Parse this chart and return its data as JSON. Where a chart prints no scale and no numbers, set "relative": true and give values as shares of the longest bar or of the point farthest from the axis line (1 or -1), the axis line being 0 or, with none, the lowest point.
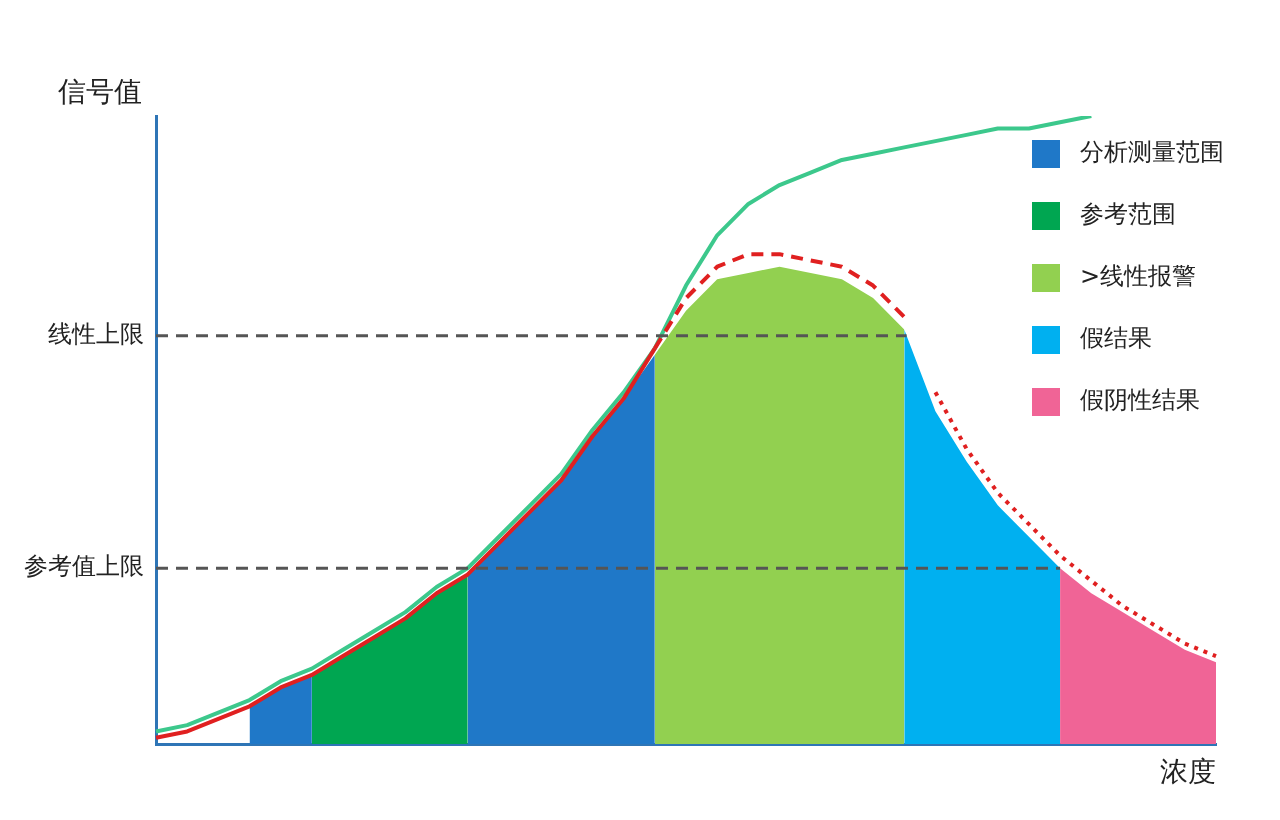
{
  "chart_data": {
    "type": "area",
    "relative": true,
    "xlabel": "浓度",
    "ylabel": "信号值",
    "legend": "right",
    "marker": "none",
    "grid": false,
    "categories": [
      null,
      null,
      null,
      null,
      null,
      null,
      null,
      null,
      null,
      null,
      null,
      null,
      null,
      null,
      null,
      null,
      null,
      null,
      null,
      null,
      null,
      null,
      null,
      null,
      null,
      null,
      null,
      null,
      null,
      null,
      null,
      null,
      null,
      null,
      null
    ],
    "series": [
      {
        "color": "#1f78c8",
        "values": [
          null,
          null,
          null,
          0.06,
          0.09,
          0.11,
          null,
          null,
          null,
          null,
          null,
          null,
          null,
          null,
          null,
          null,
          null,
          null,
          null,
          null,
          null,
          null,
          null,
          null,
          null,
          null,
          null,
          null,
          null,
          null,
          null,
          null,
          null,
          null,
          null
        ]
      },
      {
        "name": "分析测量范围",
        "color": "#1f78c8",
        "values": [
          null,
          null,
          null,
          null,
          null,
          null,
          null,
          null,
          null,
          null,
          0.27,
          0.32,
          0.37,
          0.42,
          0.49,
          0.55,
          0.62,
          null,
          null,
          null,
          null,
          null,
          null,
          null,
          null,
          null,
          null,
          null,
          null,
          null,
          null,
          null,
          null,
          null,
          null
        ]
      },
      {
        "name": "参考范围",
        "color": "#00a651",
        "values": [
          null,
          null,
          null,
          null,
          null,
          0.11,
          0.14,
          0.17,
          0.2,
          0.24,
          0.27,
          null,
          null,
          null,
          null,
          null,
          null,
          null,
          null,
          null,
          null,
          null,
          null,
          null,
          null,
          null,
          null,
          null,
          null,
          null,
          null,
          null,
          null,
          null,
          null
        ]
      },
      {
        "name": ">线性报警",
        "color": "#92d050",
        "values": [
          null,
          null,
          null,
          null,
          null,
          null,
          null,
          null,
          null,
          null,
          null,
          null,
          null,
          null,
          null,
          null,
          0.62,
          0.69,
          0.74,
          0.75,
          0.76,
          0.75,
          0.74,
          0.71,
          0.66,
          null,
          null,
          null,
          null,
          null,
          null,
          null,
          null,
          null,
          null
        ]
      },
      {
        "name": "假结果",
        "color": "#00b0f0",
        "values": [
          null,
          null,
          null,
          null,
          null,
          null,
          null,
          null,
          null,
          null,
          null,
          null,
          null,
          null,
          null,
          null,
          null,
          null,
          null,
          null,
          null,
          null,
          null,
          null,
          0.66,
          0.53,
          0.45,
          0.38,
          0.33,
          0.28,
          null,
          null,
          null,
          null,
          null
        ]
      },
      {
        "name": "假阴性结果",
        "color": "#f06496",
        "values": [
          null,
          null,
          null,
          null,
          null,
          null,
          null,
          null,
          null,
          null,
          null,
          null,
          null,
          null,
          null,
          null,
          null,
          null,
          null,
          null,
          null,
          null,
          null,
          null,
          null,
          null,
          null,
          null,
          null,
          0.28,
          0.24,
          0.21,
          0.18,
          0.15,
          0.13
        ]
      },
      {
        "type": "line",
        "color": "#3cc88c",
        "line_style": "solid",
        "values": [
          0.02,
          0.03,
          0.05,
          0.07,
          0.1,
          0.12,
          0.15,
          0.18,
          0.21,
          0.25,
          0.28,
          0.33,
          0.38,
          0.43,
          0.5,
          0.56,
          0.63,
          0.73,
          0.81,
          0.86,
          0.89,
          0.91,
          0.93,
          0.94,
          0.95,
          0.96,
          0.97,
          0.98,
          0.98,
          0.99,
          1,
          null,
          null,
          null,
          null
        ]
      },
      {
        "type": "line",
        "color": "#e02020",
        "line_style": "solid",
        "values": [
          0.01,
          0.02,
          0.04,
          0.06,
          0.09,
          0.11,
          0.14,
          0.17,
          0.2,
          0.24,
          0.27,
          0.32,
          0.37,
          0.42,
          0.49,
          0.55,
          0.63,
          null,
          null,
          null,
          null,
          null,
          null,
          null,
          null,
          null,
          null,
          null,
          null,
          null,
          null,
          null,
          null,
          null,
          null
        ]
      },
      {
        "type": "line",
        "color": "#e02020",
        "line_style": "dashed",
        "values": [
          null,
          null,
          null,
          null,
          null,
          null,
          null,
          null,
          null,
          null,
          null,
          null,
          null,
          null,
          null,
          null,
          0.63,
          0.71,
          0.76,
          0.78,
          0.78,
          0.77,
          0.76,
          0.73,
          0.68,
          null,
          null,
          null,
          null,
          null,
          null,
          null,
          null,
          null,
          null
        ]
      },
      {
        "type": "line",
        "color": "#e02020",
        "line_style": "dotted",
        "values": [
          null,
          null,
          null,
          null,
          null,
          null,
          null,
          null,
          null,
          null,
          null,
          null,
          null,
          null,
          null,
          null,
          null,
          null,
          null,
          null,
          null,
          null,
          null,
          null,
          null,
          0.56,
          0.47,
          0.4,
          0.35,
          0.3,
          0.26,
          0.22,
          0.19,
          0.16,
          0.14
        ]
      }
    ],
    "ref_lines": [
      {
        "axis": "y",
        "value": 0.65,
        "label": "线性上限",
        "color": "#555555",
        "line_style": "dashed"
      },
      {
        "axis": "y",
        "value": 0.28,
        "label": "参考值上限",
        "color": "#555555",
        "line_style": "dashed"
      }
    ]
  }
}
